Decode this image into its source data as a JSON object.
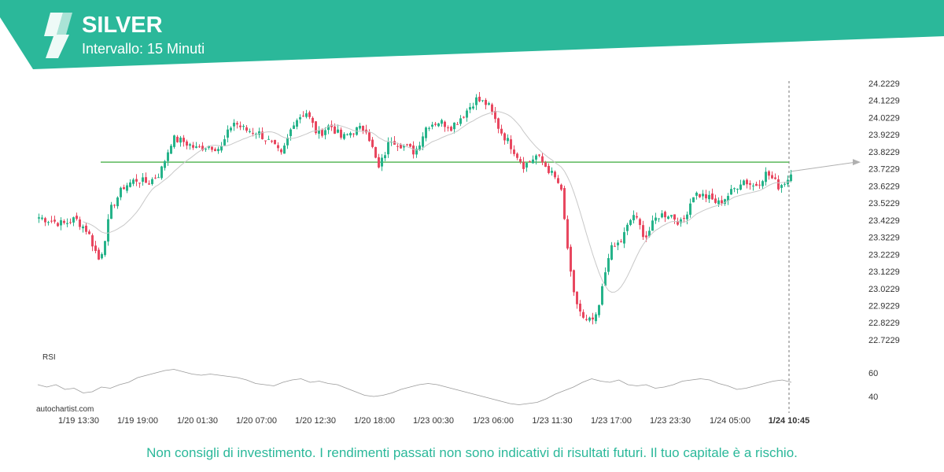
{
  "header": {
    "title": "SILVER",
    "subtitle": "Intervallo: 15 Minuti",
    "logo_icon": "autochartist-logo-icon"
  },
  "colors": {
    "accent": "#2bb89a",
    "candle_up": "#26b38a",
    "candle_down": "#e8475f",
    "moving_average": "#c8c8c8",
    "level_line": "#5cb85c",
    "projection": "#b0b0b0"
  },
  "chart_data": [
    {
      "type": "candlestick",
      "title": "SILVER",
      "y_ticks": [
        "24.2229",
        "24.1229",
        "24.0229",
        "23.9229",
        "23.8229",
        "23.7229",
        "23.6229",
        "23.5229",
        "23.4229",
        "23.3229",
        "23.2229",
        "23.1229",
        "23.0229",
        "22.9229",
        "22.8229",
        "22.7229"
      ],
      "ylim": [
        22.68,
        24.25
      ],
      "x_ticks": [
        "1/19 13:30",
        "1/19 19:00",
        "1/20 01:30",
        "1/20 07:00",
        "1/20 12:30",
        "1/20 18:00",
        "1/23 00:30",
        "1/23 06:00",
        "1/23 11:30",
        "1/23 17:00",
        "1/23 23:30",
        "1/24 05:00",
        "1/24 10:45"
      ],
      "current_time_label": "1/24 10:45",
      "level_line": 23.762,
      "projection_end": 23.762,
      "price_path": [
        23.44,
        23.42,
        23.4,
        23.43,
        23.36,
        23.18,
        23.5,
        23.62,
        23.66,
        23.64,
        23.7,
        23.9,
        23.88,
        23.84,
        23.86,
        23.84,
        24.0,
        23.95,
        23.94,
        23.88,
        23.8,
        24.0,
        24.06,
        23.92,
        23.98,
        23.9,
        23.95,
        23.96,
        23.72,
        23.9,
        23.86,
        23.82,
        23.98,
        24.0,
        23.97,
        24.04,
        24.13,
        24.1,
        23.95,
        23.85,
        23.74,
        23.8,
        23.72,
        23.62,
        23.0,
        22.82,
        22.85,
        23.24,
        23.3,
        23.46,
        23.32,
        23.45,
        23.46,
        23.4,
        23.58,
        23.56,
        23.52,
        23.58,
        23.66,
        23.62,
        23.7,
        23.62,
        23.68
      ]
    },
    {
      "type": "line",
      "title": "RSI",
      "y_ticks": [
        "60",
        "40"
      ],
      "ylim": [
        33,
        66
      ],
      "values": [
        50,
        48,
        50,
        46,
        47,
        43,
        44,
        48,
        47,
        50,
        52,
        56,
        58,
        60,
        62,
        63,
        61,
        59,
        58,
        59,
        58,
        57,
        56,
        54,
        51,
        50,
        49,
        52,
        54,
        55,
        52,
        53,
        51,
        50,
        47,
        44,
        41,
        40,
        41,
        43,
        46,
        48,
        50,
        51,
        50,
        48,
        46,
        44,
        42,
        40,
        38,
        36,
        34,
        33,
        34,
        35,
        38,
        42,
        45,
        48,
        52,
        55,
        53,
        52,
        54,
        50,
        49,
        50,
        47,
        48,
        50,
        53,
        54,
        55,
        54,
        51,
        49,
        46,
        47,
        49,
        51,
        53,
        54,
        52
      ]
    }
  ],
  "watermark": "autochartist.com",
  "disclaimer": "Non consigli di investimento. I rendimenti passati non sono indicativi di risultati futuri. Il tuo capitale è a rischio."
}
